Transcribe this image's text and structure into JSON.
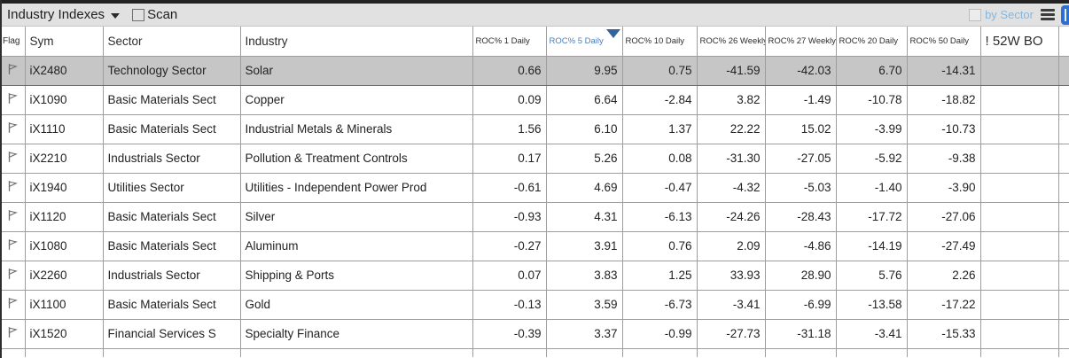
{
  "toolbar": {
    "title": "Industry Indexes",
    "scan_label": "Scan",
    "by_sector_label": "by Sector"
  },
  "colors": {
    "sort_accent_blue": "#4a7dbd",
    "by_sector_blue": "#8ab6d9",
    "selected_row_bg": "#c6c6c6",
    "app_icon_blue": "#2e6fd6"
  },
  "table": {
    "sorted_column": "ROC% 5 Daily",
    "sort_direction": "desc",
    "columns": [
      {
        "id": "flag",
        "label": "Flag"
      },
      {
        "id": "sym",
        "label": "Sym"
      },
      {
        "id": "sector",
        "label": "Sector"
      },
      {
        "id": "industry",
        "label": "Industry"
      },
      {
        "id": "roc1d",
        "label": "ROC% 1 Daily"
      },
      {
        "id": "roc5d",
        "label": "ROC% 5 Daily",
        "sorted": "desc"
      },
      {
        "id": "roc10d",
        "label": "ROC% 10 Daily"
      },
      {
        "id": "roc26w",
        "label": "ROC% 26 Weekly"
      },
      {
        "id": "roc27w",
        "label": "ROC% 27 Weekly"
      },
      {
        "id": "roc20d",
        "label": "ROC% 20 Daily"
      },
      {
        "id": "roc50d",
        "label": "ROC% 50 Daily"
      },
      {
        "id": "bo52w",
        "label": "! 52W BO"
      },
      {
        "id": "extra",
        "label": ""
      }
    ],
    "rows": [
      {
        "sym": "iX2480",
        "sector": "Technology Sector",
        "industry": "Solar",
        "values": [
          "0.66",
          "9.95",
          "0.75",
          "-41.59",
          "-42.03",
          "6.70",
          "-14.31"
        ],
        "selected": true
      },
      {
        "sym": "iX1090",
        "sector": "Basic Materials Sect",
        "industry": "Copper",
        "values": [
          "0.09",
          "6.64",
          "-2.84",
          "3.82",
          "-1.49",
          "-10.78",
          "-18.82"
        ],
        "selected": false
      },
      {
        "sym": "iX1110",
        "sector": "Basic Materials Sect",
        "industry": "Industrial Metals & Minerals",
        "values": [
          "1.56",
          "6.10",
          "1.37",
          "22.22",
          "15.02",
          "-3.99",
          "-10.73"
        ],
        "selected": false
      },
      {
        "sym": "iX2210",
        "sector": "Industrials Sector",
        "industry": "Pollution & Treatment Controls",
        "values": [
          "0.17",
          "5.26",
          "0.08",
          "-31.30",
          "-27.05",
          "-5.92",
          "-9.38"
        ],
        "selected": false
      },
      {
        "sym": "iX1940",
        "sector": "Utilities Sector",
        "industry": "Utilities - Independent Power Prod",
        "values": [
          "-0.61",
          "4.69",
          "-0.47",
          "-4.32",
          "-5.03",
          "-1.40",
          "-3.90"
        ],
        "selected": false
      },
      {
        "sym": "iX1120",
        "sector": "Basic Materials Sect",
        "industry": "Silver",
        "values": [
          "-0.93",
          "4.31",
          "-6.13",
          "-24.26",
          "-28.43",
          "-17.72",
          "-27.06"
        ],
        "selected": false
      },
      {
        "sym": "iX1080",
        "sector": "Basic Materials Sect",
        "industry": "Aluminum",
        "values": [
          "-0.27",
          "3.91",
          "0.76",
          "2.09",
          "-4.86",
          "-14.19",
          "-27.49"
        ],
        "selected": false
      },
      {
        "sym": "iX2260",
        "sector": "Industrials Sector",
        "industry": "Shipping & Ports",
        "values": [
          "0.07",
          "3.83",
          "1.25",
          "33.93",
          "28.90",
          "5.76",
          "2.26"
        ],
        "selected": false
      },
      {
        "sym": "iX1100",
        "sector": "Basic Materials Sect",
        "industry": "Gold",
        "values": [
          "-0.13",
          "3.59",
          "-6.73",
          "-3.41",
          "-6.99",
          "-13.58",
          "-17.22"
        ],
        "selected": false
      },
      {
        "sym": "iX1520",
        "sector": "Financial Services S",
        "industry": "Specialty Finance",
        "values": [
          "-0.39",
          "3.37",
          "-0.99",
          "-27.73",
          "-31.18",
          "-3.41",
          "-15.33"
        ],
        "selected": false
      }
    ]
  }
}
